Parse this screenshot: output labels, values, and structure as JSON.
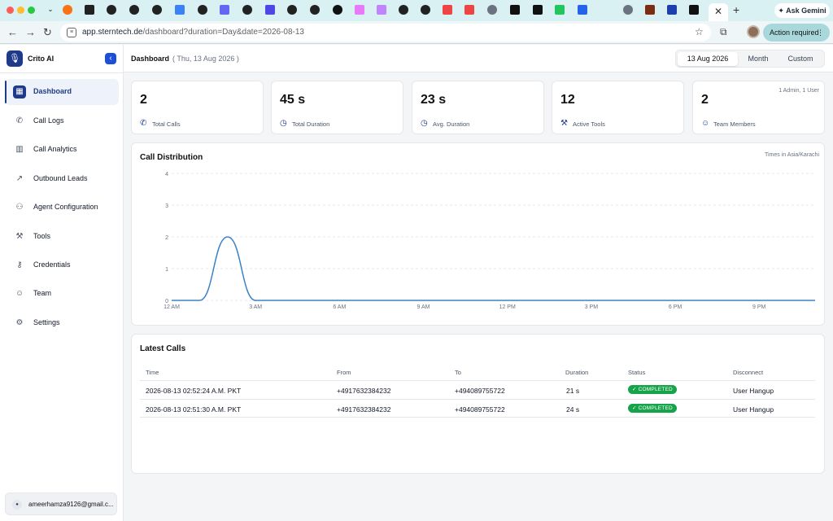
{
  "browser": {
    "url_host": "app.sterntech.de",
    "url_path": "/dashboard?duration=Day&date=2026-08-13",
    "ask_gemini": "Ask Gemini",
    "action_required": "Action required"
  },
  "sidebar": {
    "brand": "Crito AI",
    "items": [
      {
        "label": "Dashboard",
        "icon": "dashboard-icon",
        "active": true
      },
      {
        "label": "Call Logs",
        "icon": "phone-icon"
      },
      {
        "label": "Call Analytics",
        "icon": "bar-chart-icon"
      },
      {
        "label": "Outbound Leads",
        "icon": "outbound-call-icon"
      },
      {
        "label": "Agent Configuration",
        "icon": "robot-icon"
      },
      {
        "label": "Tools",
        "icon": "wrench-icon"
      },
      {
        "label": "Credentials",
        "icon": "key-icon"
      },
      {
        "label": "Team",
        "icon": "users-icon"
      },
      {
        "label": "Settings",
        "icon": "gear-icon"
      }
    ],
    "user_email": "ameerhamza9126@gmail.c..."
  },
  "header": {
    "title": "Dashboard",
    "date": "( Thu, 13 Aug 2026 )",
    "segments": [
      "13 Aug 2026",
      "Month",
      "Custom"
    ],
    "selected_segment": "13 Aug 2026"
  },
  "stats": [
    {
      "value": "2",
      "label": "Total Calls",
      "icon": "phone-icon"
    },
    {
      "value": "45 s",
      "label": "Total Duration",
      "icon": "clock-icon"
    },
    {
      "value": "23 s",
      "label": "Avg. Duration",
      "icon": "clock-icon"
    },
    {
      "value": "12",
      "label": "Active Tools",
      "icon": "tools-icon"
    },
    {
      "value": "2",
      "label": "Team Members",
      "icon": "users-icon",
      "extra": "1 Admin, 1 User"
    }
  ],
  "chart": {
    "title": "Call Distribution",
    "note": "Times in Asia/Karachi"
  },
  "chart_data": {
    "type": "line",
    "title": "Call Distribution",
    "x_ticks": [
      "12 AM",
      "3 AM",
      "6 AM",
      "9 AM",
      "12 PM",
      "3 PM",
      "6 PM",
      "9 PM"
    ],
    "y_ticks": [
      "0",
      "1",
      "2",
      "3",
      "4"
    ],
    "ylim": [
      0,
      4
    ],
    "xlim": [
      0,
      23
    ],
    "grid": true,
    "series": [
      {
        "color": "#3b82c4",
        "x": [
          0,
          1,
          2,
          3,
          4,
          5,
          6,
          7,
          8,
          9,
          10,
          11,
          12,
          13,
          14,
          15,
          16,
          17,
          18,
          19,
          20,
          21,
          22,
          23
        ],
        "y": [
          0,
          0,
          2,
          0,
          0,
          0,
          0,
          0,
          0,
          0,
          0,
          0,
          0,
          0,
          0,
          0,
          0,
          0,
          0,
          0,
          0,
          0,
          0,
          0
        ]
      }
    ]
  },
  "calls": {
    "title": "Latest Calls",
    "columns": [
      "Time",
      "From",
      "To",
      "Duration",
      "Status",
      "Disconnect"
    ],
    "rows": [
      {
        "time": "2026-08-13 02:52:24 A.M. PKT",
        "from": "+4917632384232",
        "to": "+494089755722",
        "duration": "21 s",
        "status": "COMPLETED",
        "disconnect": "User Hangup"
      },
      {
        "time": "2026-08-13 02:51:30 A.M. PKT",
        "from": "+4917632384232",
        "to": "+494089755722",
        "duration": "24 s",
        "status": "COMPLETED",
        "disconnect": "User Hangup"
      }
    ]
  }
}
